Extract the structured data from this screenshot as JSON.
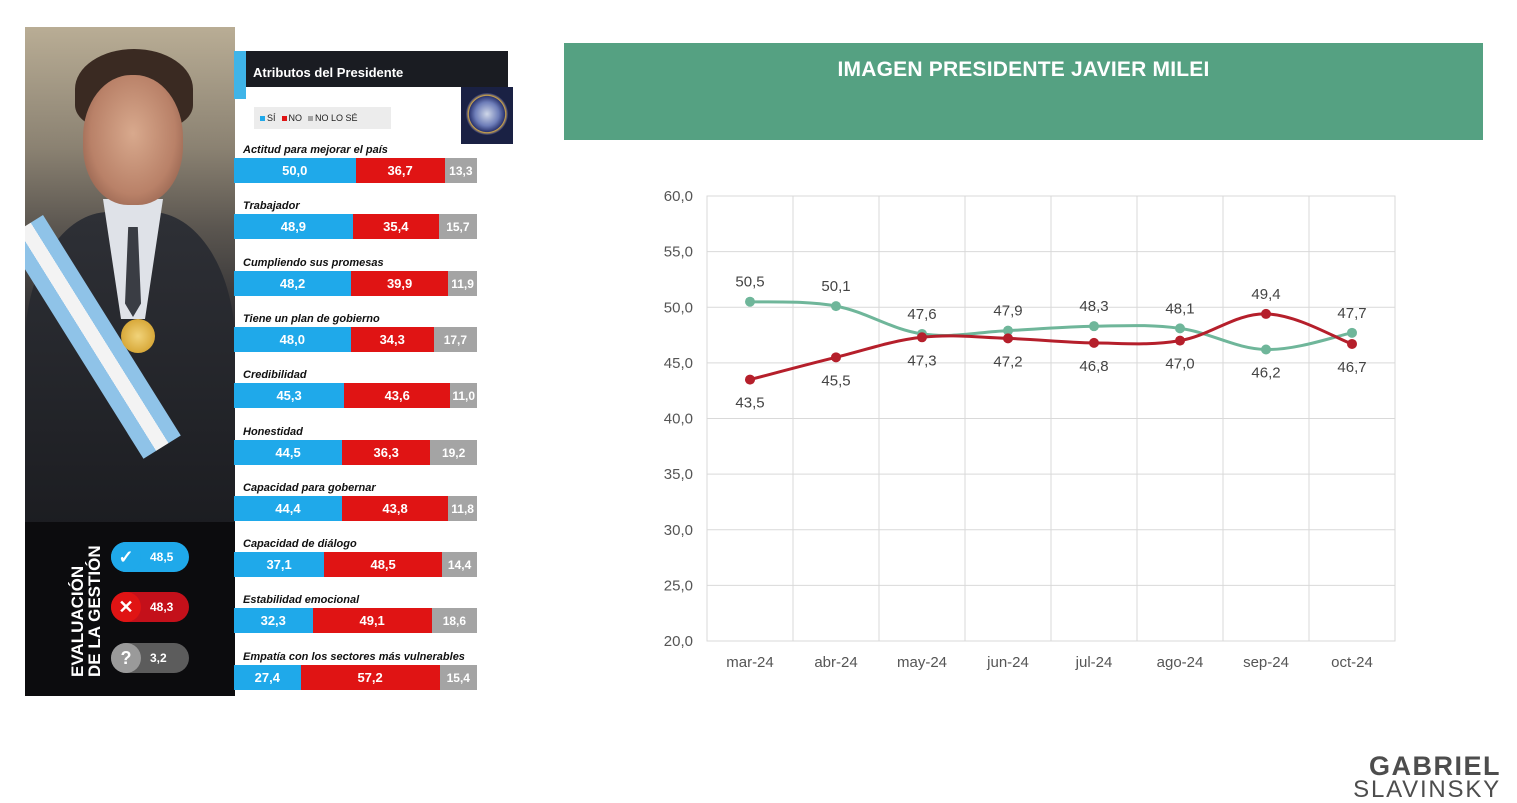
{
  "infographic": {
    "title": "Atributos del Presidente",
    "legend": [
      {
        "label": "SÍ",
        "color": "#1fa9ea"
      },
      {
        "label": "NO",
        "color": "#e01414"
      },
      {
        "label": "NO LO SÉ",
        "color": "#a4a4a4"
      }
    ],
    "attributes": [
      {
        "label": "Actitud para mejorar el país",
        "si": "50,0",
        "no": "36,7",
        "ns": "13,3",
        "si_v": 50.0,
        "no_v": 36.7,
        "ns_v": 13.3
      },
      {
        "label": "Trabajador",
        "si": "48,9",
        "no": "35,4",
        "ns": "15,7",
        "si_v": 48.9,
        "no_v": 35.4,
        "ns_v": 15.7
      },
      {
        "label": "Cumpliendo sus promesas",
        "si": "48,2",
        "no": "39,9",
        "ns": "11,9",
        "si_v": 48.2,
        "no_v": 39.9,
        "ns_v": 11.9
      },
      {
        "label": "Tiene un plan de gobierno",
        "si": "48,0",
        "no": "34,3",
        "ns": "17,7",
        "si_v": 48.0,
        "no_v": 34.3,
        "ns_v": 17.7
      },
      {
        "label": "Credibilidad",
        "si": "45,3",
        "no": "43,6",
        "ns": "11,0",
        "si_v": 45.3,
        "no_v": 43.6,
        "ns_v": 11.0
      },
      {
        "label": "Honestidad",
        "si": "44,5",
        "no": "36,3",
        "ns": "19,2",
        "si_v": 44.5,
        "no_v": 36.3,
        "ns_v": 19.2
      },
      {
        "label": "Capacidad para gobernar",
        "si": "44,4",
        "no": "43,8",
        "ns": "11,8",
        "si_v": 44.4,
        "no_v": 43.8,
        "ns_v": 11.8
      },
      {
        "label": "Capacidad de diálogo",
        "si": "37,1",
        "no": "48,5",
        "ns": "14,4",
        "si_v": 37.1,
        "no_v": 48.5,
        "ns_v": 14.4
      },
      {
        "label": "Estabilidad emocional",
        "si": "32,3",
        "no": "49,1",
        "ns": "18,6",
        "si_v": 32.3,
        "no_v": 49.1,
        "ns_v": 18.6
      },
      {
        "label": "Empatía con los sectores más vulnerables",
        "si": "27,4",
        "no": "57,2",
        "ns": "15,4",
        "si_v": 27.4,
        "no_v": 57.2,
        "ns_v": 15.4
      }
    ],
    "evaluation": {
      "title_line1": "EVALUACIÓN",
      "title_line2": "DE LA GESTIÓN",
      "items": [
        {
          "icon": "check-icon",
          "glyph": "✓",
          "value": "48,5",
          "icon_color": "#1fa9ea",
          "pill_color": "#1fa9ea"
        },
        {
          "icon": "x-icon",
          "glyph": "✕",
          "value": "48,3",
          "icon_color": "#e01414",
          "pill_color": "#c4101a"
        },
        {
          "icon": "question-icon",
          "glyph": "?",
          "value": "3,2",
          "icon_color": "#9a9a9a",
          "pill_color": "#5c5c5c"
        }
      ]
    }
  },
  "chart_data": {
    "type": "line",
    "title": "IMAGEN PRESIDENTE JAVIER MILEI",
    "categories": [
      "mar-24",
      "abr-24",
      "may-24",
      "jun-24",
      "jul-24",
      "ago-24",
      "sep-24",
      "oct-24"
    ],
    "series": [
      {
        "color": "#6fb69a",
        "values": [
          50.5,
          50.1,
          47.6,
          47.9,
          48.3,
          48.1,
          46.2,
          47.7
        ],
        "labels": [
          "50,5",
          "50,1",
          "47,6",
          "47,9",
          "48,3",
          "48,1",
          "46,2",
          "47,7"
        ]
      },
      {
        "color": "#b51f2b",
        "values": [
          43.5,
          45.5,
          47.3,
          47.2,
          46.8,
          47.0,
          49.4,
          46.7
        ],
        "labels": [
          "43,5",
          "45,5",
          "47,3",
          "47,2",
          "46,8",
          "47,0",
          "49,4",
          "46,7"
        ]
      }
    ],
    "ylim": [
      20,
      60
    ],
    "yticks": [
      "20,0",
      "25,0",
      "30,0",
      "35,0",
      "40,0",
      "45,0",
      "50,0",
      "55,0",
      "60,0"
    ],
    "grid": true,
    "header_color": "#55a182"
  },
  "brand": {
    "line1": "GABRIEL",
    "line2": "SLAVINSKY"
  }
}
